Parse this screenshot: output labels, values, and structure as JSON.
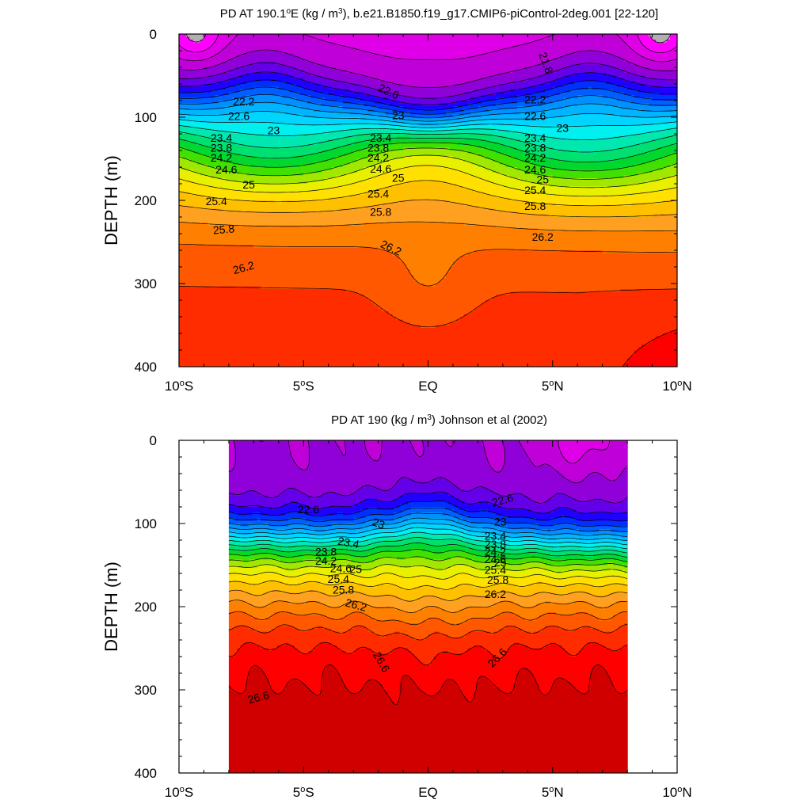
{
  "chart_data": [
    {
      "type": "contour",
      "title_parts": [
        "PD AT 190.1",
        "o",
        "E (kg / m",
        "3",
        "), b.e21.B1850.f19_g17.CMIP6-piControl-2deg.001 [22-120]"
      ],
      "ylabel": "DEPTH (m)",
      "x_ticks": [
        {
          "value": -10,
          "text": "10",
          "deg": "o",
          "hemi": "S"
        },
        {
          "value": -5,
          "text": "5",
          "deg": "o",
          "hemi": "S"
        },
        {
          "value": 0,
          "text": "EQ",
          "deg": "",
          "hemi": ""
        },
        {
          "value": 5,
          "text": "5",
          "deg": "o",
          "hemi": "N"
        },
        {
          "value": 10,
          "text": "10",
          "deg": "o",
          "hemi": "N"
        }
      ],
      "y_ticks": [
        "0",
        "100",
        "200",
        "300",
        "400"
      ],
      "xlim": [
        -10,
        10
      ],
      "ylim": [
        0,
        400
      ],
      "y_inverted": true,
      "data_xlim": [
        -10,
        10
      ],
      "contour_levels": [
        21.6,
        21.8,
        22.0,
        22.2,
        22.4,
        22.6,
        22.8,
        23.0,
        23.2,
        23.4,
        23.6,
        23.8,
        24.0,
        24.2,
        24.4,
        24.6,
        24.8,
        25.0,
        25.2,
        25.4,
        25.6,
        25.8,
        26.0,
        26.2,
        26.4,
        26.6
      ],
      "contour_labels": [
        {
          "text": "21.8",
          "x": 4.7,
          "y": 35,
          "angle": 70
        },
        {
          "text": "22.2",
          "x": -7.4,
          "y": 82,
          "angle": 0
        },
        {
          "text": "22.6",
          "x": -7.6,
          "y": 100,
          "angle": 0
        },
        {
          "text": "23",
          "x": -6.2,
          "y": 117,
          "angle": 0
        },
        {
          "text": "23.4",
          "x": -8.3,
          "y": 126,
          "angle": 0
        },
        {
          "text": "23.8",
          "x": -8.3,
          "y": 138,
          "angle": 0
        },
        {
          "text": "24.2",
          "x": -8.3,
          "y": 150,
          "angle": 0
        },
        {
          "text": "24.6",
          "x": -8.1,
          "y": 164,
          "angle": 0
        },
        {
          "text": "25",
          "x": -7.2,
          "y": 182,
          "angle": 0
        },
        {
          "text": "25.4",
          "x": -8.5,
          "y": 202,
          "angle": 0
        },
        {
          "text": "25.8",
          "x": -8.2,
          "y": 236,
          "angle": -5
        },
        {
          "text": "26.2",
          "x": -7.4,
          "y": 282,
          "angle": -15
        },
        {
          "text": "22.6",
          "x": -1.6,
          "y": 70,
          "angle": 25
        },
        {
          "text": "23",
          "x": -1.2,
          "y": 99,
          "angle": 0
        },
        {
          "text": "23.4",
          "x": -1.9,
          "y": 126,
          "angle": 0
        },
        {
          "text": "23.8",
          "x": -2.0,
          "y": 138,
          "angle": 0
        },
        {
          "text": "24.2",
          "x": -2.0,
          "y": 150,
          "angle": 0
        },
        {
          "text": "24.6",
          "x": -1.9,
          "y": 163,
          "angle": 0
        },
        {
          "text": "25",
          "x": -1.2,
          "y": 174,
          "angle": 0
        },
        {
          "text": "25.4",
          "x": -2.0,
          "y": 193,
          "angle": 0
        },
        {
          "text": "25.8",
          "x": -1.9,
          "y": 215,
          "angle": 0
        },
        {
          "text": "26.2",
          "x": -1.5,
          "y": 258,
          "angle": 25
        },
        {
          "text": "22.2",
          "x": 4.3,
          "y": 80,
          "angle": 0
        },
        {
          "text": "22.6",
          "x": 4.3,
          "y": 100,
          "angle": 0
        },
        {
          "text": "23",
          "x": 5.4,
          "y": 114,
          "angle": 0
        },
        {
          "text": "23.4",
          "x": 4.3,
          "y": 126,
          "angle": 0
        },
        {
          "text": "23.8",
          "x": 4.3,
          "y": 138,
          "angle": 0
        },
        {
          "text": "24.2",
          "x": 4.3,
          "y": 150,
          "angle": 0
        },
        {
          "text": "24.6",
          "x": 4.3,
          "y": 164,
          "angle": 0
        },
        {
          "text": "25",
          "x": 4.6,
          "y": 176,
          "angle": 0
        },
        {
          "text": "25.4",
          "x": 4.3,
          "y": 189,
          "angle": 0
        },
        {
          "text": "25.8",
          "x": 4.3,
          "y": 208,
          "angle": 0
        },
        {
          "text": "26.2",
          "x": 4.6,
          "y": 245,
          "angle": 0
        }
      ],
      "colormap": [
        "#b0b0b0",
        "#ff00ff",
        "#e000e8",
        "#c000d8",
        "#9000d8",
        "#6400e8",
        "#2000ff",
        "#0030ff",
        "#0060ff",
        "#0090ff",
        "#00b4ff",
        "#00d4ff",
        "#00f0f0",
        "#00e8b0",
        "#00e070",
        "#00d830",
        "#40e000",
        "#a0e800",
        "#e8f000",
        "#ffe000",
        "#ffc000",
        "#ffa020",
        "#ff8000",
        "#ff5800",
        "#ff2c00",
        "#ff0000",
        "#d00000"
      ]
    },
    {
      "type": "contour",
      "title_parts": [
        "PD AT 190 (kg / m",
        "3",
        ") Johnson et al (2002)"
      ],
      "ylabel": "DEPTH (m)",
      "x_ticks": [
        {
          "value": -10,
          "text": "10",
          "deg": "o",
          "hemi": "S"
        },
        {
          "value": -5,
          "text": "5",
          "deg": "o",
          "hemi": "S"
        },
        {
          "value": 0,
          "text": "EQ",
          "deg": "",
          "hemi": ""
        },
        {
          "value": 5,
          "text": "5",
          "deg": "o",
          "hemi": "N"
        },
        {
          "value": 10,
          "text": "10",
          "deg": "o",
          "hemi": "N"
        }
      ],
      "y_ticks": [
        "0",
        "100",
        "200",
        "300",
        "400"
      ],
      "xlim": [
        -10,
        10
      ],
      "ylim": [
        0,
        400
      ],
      "y_inverted": true,
      "data_xlim": [
        -8,
        8
      ],
      "contour_levels": [
        21.6,
        21.8,
        22.0,
        22.2,
        22.4,
        22.6,
        22.8,
        23.0,
        23.2,
        23.4,
        23.6,
        23.8,
        24.0,
        24.2,
        24.4,
        24.6,
        24.8,
        25.0,
        25.2,
        25.4,
        25.6,
        25.8,
        26.0,
        26.2,
        26.4,
        26.6
      ],
      "contour_labels": [
        {
          "text": "22.6",
          "x": -4.8,
          "y": 84,
          "angle": 0
        },
        {
          "text": "23",
          "x": -2.0,
          "y": 101,
          "angle": 20
        },
        {
          "text": "23.4",
          "x": -3.2,
          "y": 124,
          "angle": 10
        },
        {
          "text": "23.8",
          "x": -4.1,
          "y": 135,
          "angle": 0
        },
        {
          "text": "24.2",
          "x": -4.1,
          "y": 146,
          "angle": 0
        },
        {
          "text": "24.6",
          "x": -3.5,
          "y": 155,
          "angle": 0
        },
        {
          "text": "25",
          "x": -2.9,
          "y": 156,
          "angle": 0
        },
        {
          "text": "25.4",
          "x": -3.6,
          "y": 168,
          "angle": 0
        },
        {
          "text": "25.8",
          "x": -3.4,
          "y": 181,
          "angle": 0
        },
        {
          "text": "26.2",
          "x": -2.9,
          "y": 199,
          "angle": 15
        },
        {
          "text": "26.6",
          "x": -1.9,
          "y": 267,
          "angle": 60
        },
        {
          "text": "26.6",
          "x": -6.8,
          "y": 310,
          "angle": -15
        },
        {
          "text": "22.6",
          "x": 3.0,
          "y": 73,
          "angle": -15
        },
        {
          "text": "23",
          "x": 2.9,
          "y": 99,
          "angle": 0
        },
        {
          "text": "23.4",
          "x": 2.7,
          "y": 116,
          "angle": 0
        },
        {
          "text": "23.8",
          "x": 2.7,
          "y": 126,
          "angle": 0
        },
        {
          "text": "24.2",
          "x": 2.7,
          "y": 135,
          "angle": 0
        },
        {
          "text": "24.6",
          "x": 2.7,
          "y": 144,
          "angle": 0
        },
        {
          "text": "25",
          "x": 2.9,
          "y": 148,
          "angle": 0
        },
        {
          "text": "25.4",
          "x": 2.7,
          "y": 157,
          "angle": 0
        },
        {
          "text": "25.8",
          "x": 2.8,
          "y": 169,
          "angle": 0
        },
        {
          "text": "26.2",
          "x": 2.7,
          "y": 186,
          "angle": 0
        },
        {
          "text": "26.6",
          "x": 2.8,
          "y": 262,
          "angle": -45
        }
      ],
      "colormap": [
        "#b0b0b0",
        "#ff00ff",
        "#e000e8",
        "#c000d8",
        "#9000d8",
        "#6400e8",
        "#2000ff",
        "#0030ff",
        "#0060ff",
        "#0090ff",
        "#00b4ff",
        "#00d4ff",
        "#00f0f0",
        "#00e8b0",
        "#00e070",
        "#00d830",
        "#40e000",
        "#a0e800",
        "#e8f000",
        "#ffe000",
        "#ffc000",
        "#ffa020",
        "#ff8000",
        "#ff5800",
        "#ff2c00",
        "#ff0000",
        "#d00000"
      ]
    }
  ]
}
